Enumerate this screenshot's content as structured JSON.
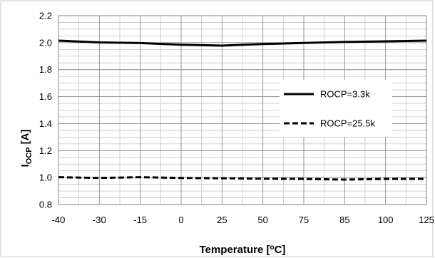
{
  "chart_data": {
    "type": "line",
    "ylabel_main": "I",
    "ylabel_sub": "OCP",
    "ylabel_unit": " [A]",
    "xlabel_main": "Temperature [",
    "xlabel_sup": "o",
    "xlabel_end": "C]",
    "categories": [
      "-40",
      "-30",
      "-15",
      "0",
      "25",
      "50",
      "75",
      "85",
      "100",
      "125"
    ],
    "yticks": [
      "0.8",
      "1.0",
      "1.2",
      "1.4",
      "1.6",
      "1.8",
      "2.0",
      "2.2"
    ],
    "ylim": [
      0.8,
      2.2
    ],
    "grid": true,
    "legend_position": "right",
    "series": [
      {
        "name": "ROCP=3.3k",
        "style": "solid",
        "color": "#000000",
        "values": [
          2.015,
          2.002,
          1.997,
          1.985,
          1.978,
          1.99,
          1.998,
          2.005,
          2.01,
          2.015
        ]
      },
      {
        "name": "ROCP=25.5k",
        "style": "dashed",
        "color": "#000000",
        "values": [
          1.003,
          0.997,
          1.003,
          0.997,
          0.995,
          0.992,
          0.99,
          0.985,
          0.99,
          0.99
        ]
      }
    ]
  }
}
